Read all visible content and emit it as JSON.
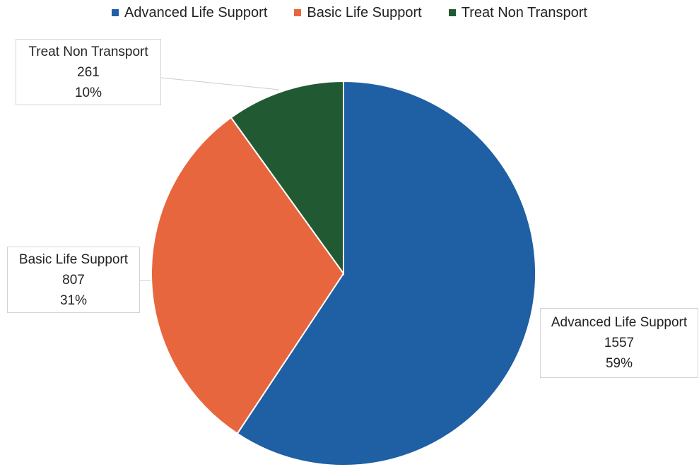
{
  "chart_data": {
    "type": "pie",
    "legend_position": "top",
    "categories": [
      "Advanced Life Support",
      "Basic Life Support",
      "Treat Non Transport"
    ],
    "values": [
      1557,
      807,
      261
    ],
    "percent_labels": [
      "59%",
      "31%",
      "10%"
    ],
    "colors": [
      "#1f5fa3",
      "#e8663d",
      "#215a32"
    ]
  }
}
